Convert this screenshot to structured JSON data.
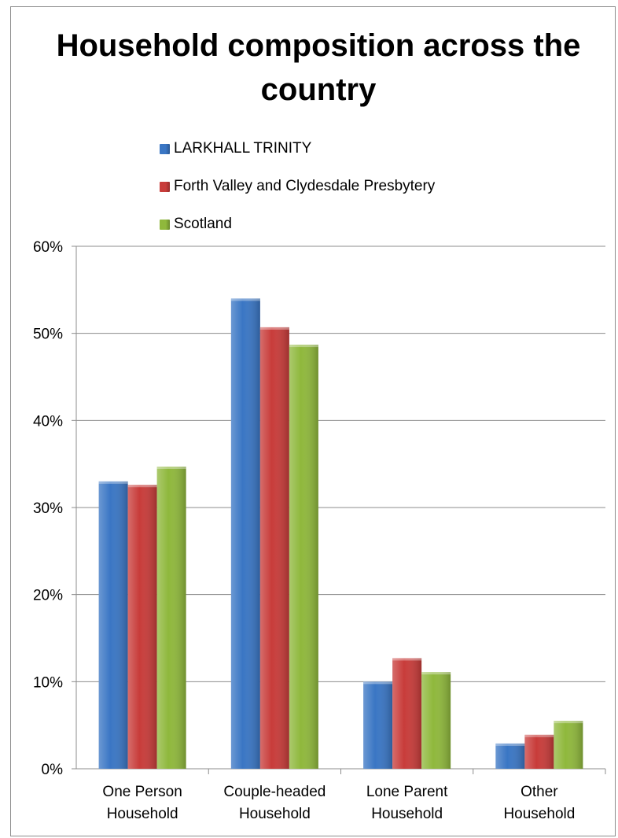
{
  "chart_data": {
    "type": "bar",
    "title": "Household composition across the country",
    "categories": [
      [
        "One Person",
        "Household"
      ],
      [
        "Couple-headed",
        "Household"
      ],
      [
        "Lone Parent",
        "Household"
      ],
      [
        "Other",
        "Household"
      ]
    ],
    "series": [
      {
        "name": "LARKHALL TRINITY",
        "values": [
          33.0,
          54.0,
          10.0,
          2.9
        ],
        "color": "#3a76c4"
      },
      {
        "name": "Forth Valley and Clydesdale Presbytery",
        "values": [
          32.6,
          50.7,
          12.7,
          3.9
        ],
        "color": "#c83c3a"
      },
      {
        "name": "Scotland",
        "values": [
          34.7,
          48.7,
          11.1,
          5.5
        ],
        "color": "#8fb83c"
      }
    ],
    "ylim": [
      0,
      60
    ],
    "yticks": [
      "0%",
      "10%",
      "20%",
      "30%",
      "40%",
      "50%",
      "60%"
    ],
    "xlabel": "",
    "ylabel": "",
    "grid": true,
    "legend_position": "top"
  }
}
